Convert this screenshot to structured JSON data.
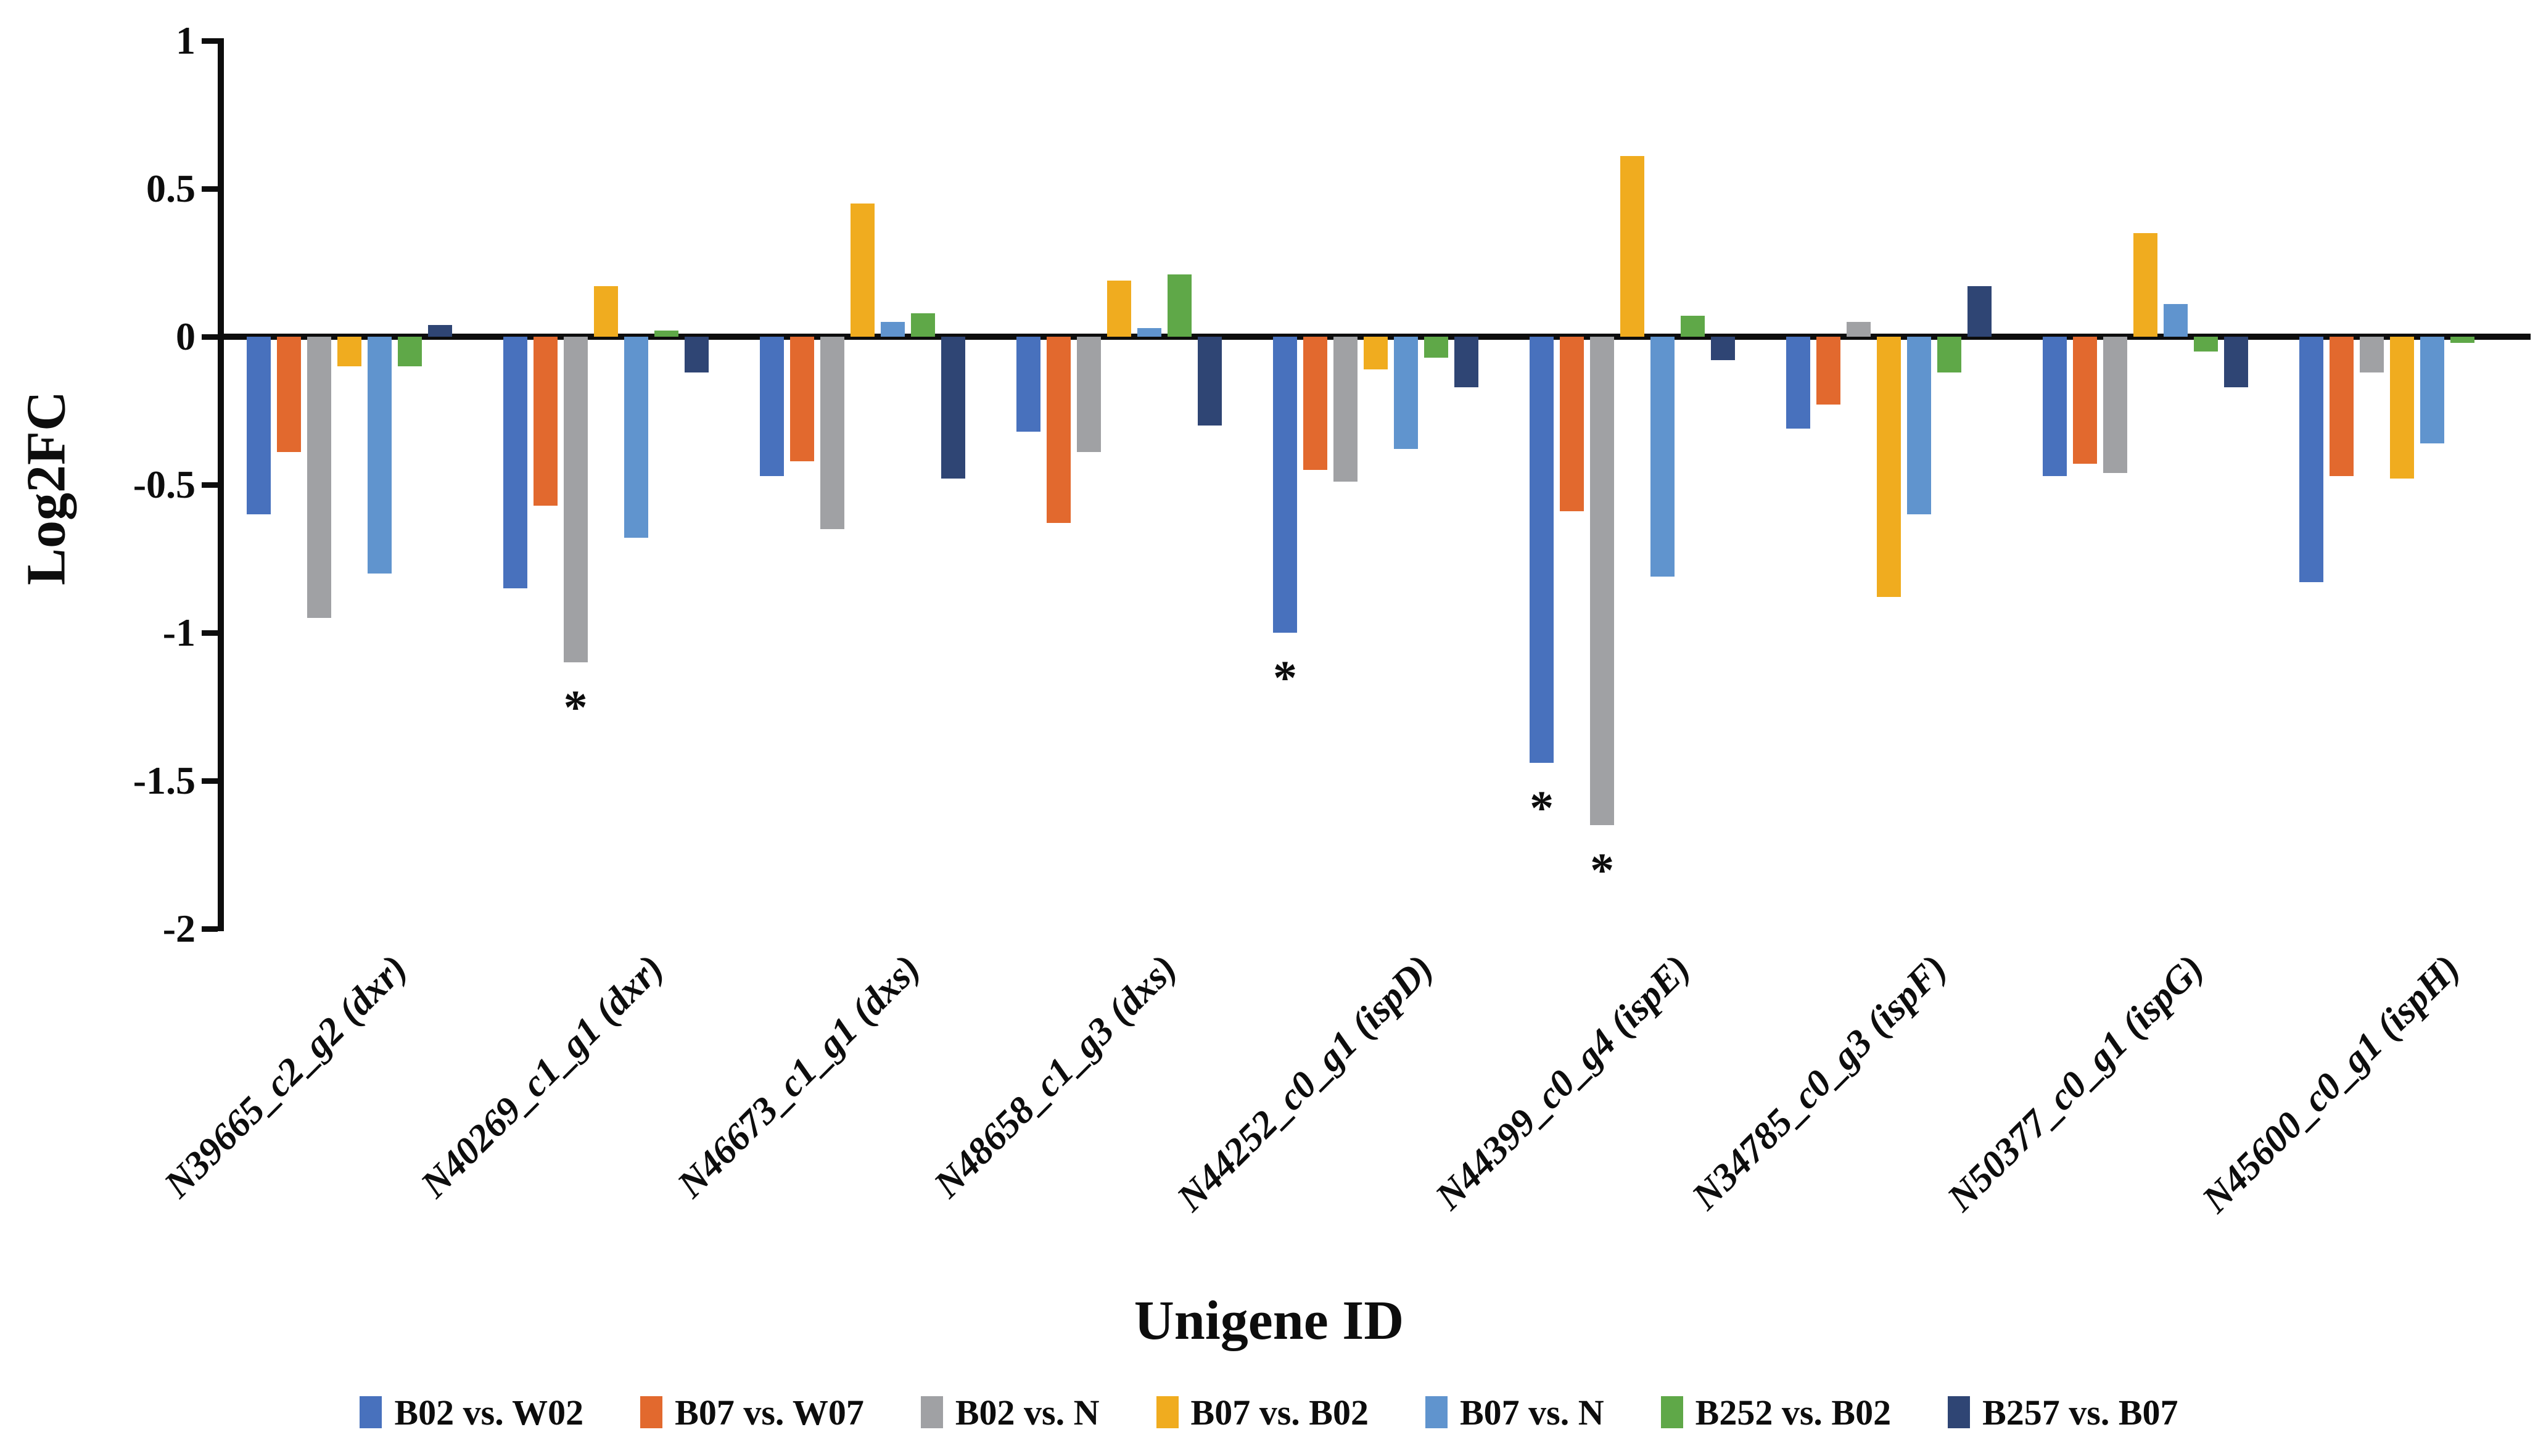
{
  "chart_data": {
    "type": "bar",
    "title": "",
    "xlabel": "Unigene ID",
    "ylabel": "Log2FC",
    "ylim": [
      -2,
      1
    ],
    "grid": false,
    "legend_position": "bottom",
    "axis_color": "#0d0d0d",
    "yticks": [
      1,
      0.5,
      0,
      -0.5,
      -1,
      -1.5,
      -2
    ],
    "ytick_labels": [
      "1",
      "0.5",
      "0",
      "-0.5",
      "-1",
      "-1.5",
      "-2"
    ],
    "categories": [
      "N39665_c2_g2 (dxr)",
      "N40269_c1_g1 (dxr)",
      "N46673_c1_g1 (dxs)",
      "N48658_c1_g3 (dxs)",
      "N44252_c0_g1 (ispD)",
      "N44399_c0_g4 (ispE)",
      "N34785_c0_g3 (ispF)",
      "N50377_c0_g1 (ispG)",
      "N45600_c0_g1 (ispH)"
    ],
    "series": [
      {
        "name": "B02 vs. W02",
        "color": "#4871BD",
        "values": [
          -0.6,
          -0.85,
          -0.47,
          -0.32,
          -1.0,
          -1.44,
          -0.31,
          -0.47,
          -0.83
        ]
      },
      {
        "name": "B07 vs. W07",
        "color": "#E2692E",
        "values": [
          -0.39,
          -0.57,
          -0.42,
          -0.63,
          -0.45,
          -0.59,
          -0.23,
          -0.43,
          -0.47
        ]
      },
      {
        "name": "B02 vs. N",
        "color": "#A0A1A4",
        "values": [
          -0.95,
          -1.1,
          -0.65,
          -0.39,
          -0.49,
          -1.65,
          0.05,
          -0.46,
          -0.12
        ]
      },
      {
        "name": "B07 vs. B02",
        "color": "#F0AC1F",
        "values": [
          -0.1,
          0.17,
          0.45,
          0.19,
          -0.11,
          0.61,
          -0.88,
          0.35,
          -0.48
        ]
      },
      {
        "name": "B07 vs. N",
        "color": "#6094CE",
        "values": [
          -0.8,
          -0.68,
          0.05,
          0.03,
          -0.38,
          -0.81,
          -0.6,
          0.11,
          -0.36
        ]
      },
      {
        "name": "B252 vs. B02",
        "color": "#5FA848",
        "values": [
          -0.1,
          0.02,
          0.08,
          0.21,
          -0.07,
          0.07,
          -0.12,
          -0.05,
          -0.02
        ]
      },
      {
        "name": "B257 vs. B07",
        "color": "#2F4574",
        "values": [
          0.04,
          -0.12,
          -0.48,
          -0.3,
          -0.17,
          -0.08,
          0.17,
          -0.17,
          0.0
        ]
      }
    ],
    "annotations": [
      {
        "category_index": 1,
        "series_index": 2,
        "symbol": "*"
      },
      {
        "category_index": 4,
        "series_index": 0,
        "symbol": "*"
      },
      {
        "category_index": 5,
        "series_index": 0,
        "symbol": "*"
      },
      {
        "category_index": 5,
        "series_index": 2,
        "symbol": "*"
      }
    ]
  }
}
